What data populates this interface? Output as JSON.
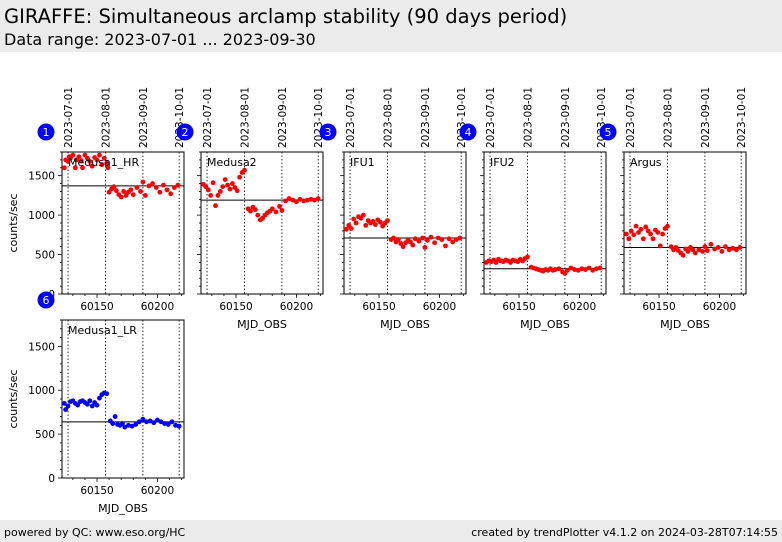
{
  "header": {
    "title": "GIRAFFE: Simultaneous arclamp stability (90 days period)",
    "subtitle": "Data range: 2023-07-01 ... 2023-09-30"
  },
  "footer": {
    "left": "powered by QC: www.eso.org/HC",
    "right": "created by trendPlotter v4.1.2 on 2024-03-28T07:14:55"
  },
  "colors": {
    "red": "#ff0000",
    "blue": "#0000ff",
    "badge": "#0000ff",
    "header_bg": "#ebebeb"
  },
  "chart_data": {
    "type": "scatter",
    "xlabel": "MJD_OBS",
    "ylabel": "counts/sec",
    "xlim": [
      60121,
      60222
    ],
    "ylim": [
      0,
      1800
    ],
    "xticks": [
      60150,
      60200
    ],
    "yticks": [
      0,
      500,
      1000,
      1500
    ],
    "date_markers": [
      {
        "label": "2023-07-01",
        "mjd": 60126
      },
      {
        "label": "2023-08-01",
        "mjd": 60157
      },
      {
        "label": "2023-09-01",
        "mjd": 60188
      },
      {
        "label": "2023-10-01",
        "mjd": 60218
      }
    ],
    "panels": [
      {
        "id": "1",
        "name": "Medusa1_HR",
        "color": "red",
        "reference": 1370,
        "series": [
          {
            "x": 60123,
            "y": 1600
          },
          {
            "x": 60124,
            "y": 1700
          },
          {
            "x": 60126,
            "y": 1680
          },
          {
            "x": 60127,
            "y": 1740
          },
          {
            "x": 60128,
            "y": 1720
          },
          {
            "x": 60130,
            "y": 1760
          },
          {
            "x": 60132,
            "y": 1600
          },
          {
            "x": 60133,
            "y": 1700
          },
          {
            "x": 60135,
            "y": 1740
          },
          {
            "x": 60137,
            "y": 1690
          },
          {
            "x": 60138,
            "y": 1600
          },
          {
            "x": 60140,
            "y": 1760
          },
          {
            "x": 60142,
            "y": 1720
          },
          {
            "x": 60144,
            "y": 1680
          },
          {
            "x": 60146,
            "y": 1620
          },
          {
            "x": 60148,
            "y": 1730
          },
          {
            "x": 60150,
            "y": 1700
          },
          {
            "x": 60152,
            "y": 1760
          },
          {
            "x": 60154,
            "y": 1640
          },
          {
            "x": 60156,
            "y": 1720
          },
          {
            "x": 60158,
            "y": 1660
          },
          {
            "x": 60159,
            "y": 1600
          },
          {
            "x": 60160,
            "y": 1290
          },
          {
            "x": 60162,
            "y": 1330
          },
          {
            "x": 60164,
            "y": 1360
          },
          {
            "x": 60166,
            "y": 1310
          },
          {
            "x": 60168,
            "y": 1260
          },
          {
            "x": 60170,
            "y": 1230
          },
          {
            "x": 60172,
            "y": 1300
          },
          {
            "x": 60174,
            "y": 1250
          },
          {
            "x": 60176,
            "y": 1290
          },
          {
            "x": 60178,
            "y": 1320
          },
          {
            "x": 60180,
            "y": 1260
          },
          {
            "x": 60183,
            "y": 1350
          },
          {
            "x": 60186,
            "y": 1300
          },
          {
            "x": 60188,
            "y": 1420
          },
          {
            "x": 60190,
            "y": 1250
          },
          {
            "x": 60193,
            "y": 1370
          },
          {
            "x": 60196,
            "y": 1400
          },
          {
            "x": 60199,
            "y": 1350
          },
          {
            "x": 60202,
            "y": 1290
          },
          {
            "x": 60205,
            "y": 1380
          },
          {
            "x": 60208,
            "y": 1320
          },
          {
            "x": 60211,
            "y": 1270
          },
          {
            "x": 60214,
            "y": 1350
          },
          {
            "x": 60217,
            "y": 1380
          }
        ]
      },
      {
        "id": "2",
        "name": "Medusa2",
        "color": "red",
        "reference": 1190,
        "series": [
          {
            "x": 60123,
            "y": 1390
          },
          {
            "x": 60125,
            "y": 1360
          },
          {
            "x": 60127,
            "y": 1320
          },
          {
            "x": 60129,
            "y": 1250
          },
          {
            "x": 60131,
            "y": 1410
          },
          {
            "x": 60133,
            "y": 1120
          },
          {
            "x": 60135,
            "y": 1250
          },
          {
            "x": 60137,
            "y": 1300
          },
          {
            "x": 60139,
            "y": 1360
          },
          {
            "x": 60141,
            "y": 1450
          },
          {
            "x": 60143,
            "y": 1380
          },
          {
            "x": 60145,
            "y": 1330
          },
          {
            "x": 60147,
            "y": 1400
          },
          {
            "x": 60149,
            "y": 1350
          },
          {
            "x": 60151,
            "y": 1310
          },
          {
            "x": 60153,
            "y": 1480
          },
          {
            "x": 60155,
            "y": 1540
          },
          {
            "x": 60157,
            "y": 1570
          },
          {
            "x": 60160,
            "y": 1080
          },
          {
            "x": 60162,
            "y": 1050
          },
          {
            "x": 60164,
            "y": 1100
          },
          {
            "x": 60166,
            "y": 1070
          },
          {
            "x": 60168,
            "y": 1000
          },
          {
            "x": 60170,
            "y": 940
          },
          {
            "x": 60172,
            "y": 960
          },
          {
            "x": 60174,
            "y": 1000
          },
          {
            "x": 60176,
            "y": 1030
          },
          {
            "x": 60178,
            "y": 1050
          },
          {
            "x": 60180,
            "y": 1080
          },
          {
            "x": 60183,
            "y": 1040
          },
          {
            "x": 60186,
            "y": 1110
          },
          {
            "x": 60188,
            "y": 1060
          },
          {
            "x": 60191,
            "y": 1180
          },
          {
            "x": 60194,
            "y": 1210
          },
          {
            "x": 60197,
            "y": 1190
          },
          {
            "x": 60200,
            "y": 1170
          },
          {
            "x": 60203,
            "y": 1200
          },
          {
            "x": 60206,
            "y": 1180
          },
          {
            "x": 60209,
            "y": 1190
          },
          {
            "x": 60212,
            "y": 1200
          },
          {
            "x": 60215,
            "y": 1190
          },
          {
            "x": 60218,
            "y": 1210
          }
        ]
      },
      {
        "id": "3",
        "name": "IFU1",
        "color": "red",
        "reference": 710,
        "series": [
          {
            "x": 60123,
            "y": 820
          },
          {
            "x": 60125,
            "y": 870
          },
          {
            "x": 60127,
            "y": 830
          },
          {
            "x": 60129,
            "y": 950
          },
          {
            "x": 60131,
            "y": 900
          },
          {
            "x": 60133,
            "y": 980
          },
          {
            "x": 60135,
            "y": 960
          },
          {
            "x": 60137,
            "y": 1000
          },
          {
            "x": 60139,
            "y": 870
          },
          {
            "x": 60141,
            "y": 930
          },
          {
            "x": 60143,
            "y": 900
          },
          {
            "x": 60145,
            "y": 920
          },
          {
            "x": 60147,
            "y": 880
          },
          {
            "x": 60149,
            "y": 940
          },
          {
            "x": 60151,
            "y": 910
          },
          {
            "x": 60153,
            "y": 860
          },
          {
            "x": 60155,
            "y": 900
          },
          {
            "x": 60157,
            "y": 930
          },
          {
            "x": 60160,
            "y": 690
          },
          {
            "x": 60162,
            "y": 710
          },
          {
            "x": 60164,
            "y": 660
          },
          {
            "x": 60166,
            "y": 690
          },
          {
            "x": 60168,
            "y": 640
          },
          {
            "x": 60170,
            "y": 600
          },
          {
            "x": 60172,
            "y": 650
          },
          {
            "x": 60174,
            "y": 680
          },
          {
            "x": 60176,
            "y": 660
          },
          {
            "x": 60178,
            "y": 620
          },
          {
            "x": 60180,
            "y": 700
          },
          {
            "x": 60183,
            "y": 670
          },
          {
            "x": 60186,
            "y": 710
          },
          {
            "x": 60188,
            "y": 590
          },
          {
            "x": 60190,
            "y": 680
          },
          {
            "x": 60193,
            "y": 720
          },
          {
            "x": 60196,
            "y": 650
          },
          {
            "x": 60199,
            "y": 710
          },
          {
            "x": 60202,
            "y": 690
          },
          {
            "x": 60205,
            "y": 610
          },
          {
            "x": 60208,
            "y": 700
          },
          {
            "x": 60211,
            "y": 660
          },
          {
            "x": 60214,
            "y": 690
          },
          {
            "x": 60217,
            "y": 710
          }
        ]
      },
      {
        "id": "4",
        "name": "IFU2",
        "color": "red",
        "reference": 320,
        "series": [
          {
            "x": 60123,
            "y": 400
          },
          {
            "x": 60125,
            "y": 420
          },
          {
            "x": 60127,
            "y": 410
          },
          {
            "x": 60129,
            "y": 430
          },
          {
            "x": 60131,
            "y": 400
          },
          {
            "x": 60133,
            "y": 440
          },
          {
            "x": 60135,
            "y": 420
          },
          {
            "x": 60137,
            "y": 410
          },
          {
            "x": 60139,
            "y": 430
          },
          {
            "x": 60141,
            "y": 420
          },
          {
            "x": 60143,
            "y": 400
          },
          {
            "x": 60145,
            "y": 430
          },
          {
            "x": 60147,
            "y": 420
          },
          {
            "x": 60149,
            "y": 410
          },
          {
            "x": 60151,
            "y": 440
          },
          {
            "x": 60153,
            "y": 420
          },
          {
            "x": 60155,
            "y": 450
          },
          {
            "x": 60157,
            "y": 470
          },
          {
            "x": 60160,
            "y": 340
          },
          {
            "x": 60162,
            "y": 330
          },
          {
            "x": 60164,
            "y": 320
          },
          {
            "x": 60166,
            "y": 310
          },
          {
            "x": 60168,
            "y": 300
          },
          {
            "x": 60170,
            "y": 290
          },
          {
            "x": 60172,
            "y": 310
          },
          {
            "x": 60174,
            "y": 300
          },
          {
            "x": 60176,
            "y": 320
          },
          {
            "x": 60178,
            "y": 300
          },
          {
            "x": 60180,
            "y": 310
          },
          {
            "x": 60183,
            "y": 320
          },
          {
            "x": 60186,
            "y": 280
          },
          {
            "x": 60188,
            "y": 260
          },
          {
            "x": 60190,
            "y": 300
          },
          {
            "x": 60193,
            "y": 330
          },
          {
            "x": 60196,
            "y": 310
          },
          {
            "x": 60199,
            "y": 300
          },
          {
            "x": 60202,
            "y": 320
          },
          {
            "x": 60205,
            "y": 310
          },
          {
            "x": 60208,
            "y": 330
          },
          {
            "x": 60211,
            "y": 300
          },
          {
            "x": 60214,
            "y": 320
          },
          {
            "x": 60217,
            "y": 330
          }
        ]
      },
      {
        "id": "5",
        "name": "Argus",
        "color": "red",
        "reference": 590,
        "series": [
          {
            "x": 60123,
            "y": 760
          },
          {
            "x": 60125,
            "y": 700
          },
          {
            "x": 60127,
            "y": 800
          },
          {
            "x": 60129,
            "y": 750
          },
          {
            "x": 60131,
            "y": 860
          },
          {
            "x": 60133,
            "y": 780
          },
          {
            "x": 60135,
            "y": 820
          },
          {
            "x": 60137,
            "y": 700
          },
          {
            "x": 60139,
            "y": 850
          },
          {
            "x": 60141,
            "y": 800
          },
          {
            "x": 60143,
            "y": 760
          },
          {
            "x": 60145,
            "y": 700
          },
          {
            "x": 60147,
            "y": 810
          },
          {
            "x": 60149,
            "y": 780
          },
          {
            "x": 60151,
            "y": 610
          },
          {
            "x": 60153,
            "y": 760
          },
          {
            "x": 60155,
            "y": 830
          },
          {
            "x": 60157,
            "y": 860
          },
          {
            "x": 60160,
            "y": 600
          },
          {
            "x": 60162,
            "y": 560
          },
          {
            "x": 60164,
            "y": 590
          },
          {
            "x": 60166,
            "y": 550
          },
          {
            "x": 60168,
            "y": 520
          },
          {
            "x": 60170,
            "y": 490
          },
          {
            "x": 60172,
            "y": 570
          },
          {
            "x": 60174,
            "y": 540
          },
          {
            "x": 60176,
            "y": 590
          },
          {
            "x": 60178,
            "y": 560
          },
          {
            "x": 60180,
            "y": 520
          },
          {
            "x": 60183,
            "y": 560
          },
          {
            "x": 60186,
            "y": 540
          },
          {
            "x": 60188,
            "y": 600
          },
          {
            "x": 60190,
            "y": 550
          },
          {
            "x": 60193,
            "y": 630
          },
          {
            "x": 60196,
            "y": 570
          },
          {
            "x": 60199,
            "y": 590
          },
          {
            "x": 60202,
            "y": 540
          },
          {
            "x": 60205,
            "y": 600
          },
          {
            "x": 60208,
            "y": 560
          },
          {
            "x": 60211,
            "y": 580
          },
          {
            "x": 60214,
            "y": 560
          },
          {
            "x": 60217,
            "y": 590
          }
        ]
      },
      {
        "id": "6",
        "name": "Medusa1_LR",
        "color": "blue",
        "reference": 640,
        "series": [
          {
            "x": 60123,
            "y": 850
          },
          {
            "x": 60124,
            "y": 780
          },
          {
            "x": 60126,
            "y": 820
          },
          {
            "x": 60128,
            "y": 870
          },
          {
            "x": 60130,
            "y": 880
          },
          {
            "x": 60132,
            "y": 850
          },
          {
            "x": 60134,
            "y": 830
          },
          {
            "x": 60136,
            "y": 870
          },
          {
            "x": 60138,
            "y": 880
          },
          {
            "x": 60140,
            "y": 860
          },
          {
            "x": 60142,
            "y": 840
          },
          {
            "x": 60144,
            "y": 880
          },
          {
            "x": 60146,
            "y": 820
          },
          {
            "x": 60148,
            "y": 860
          },
          {
            "x": 60150,
            "y": 830
          },
          {
            "x": 60152,
            "y": 910
          },
          {
            "x": 60154,
            "y": 950
          },
          {
            "x": 60156,
            "y": 970
          },
          {
            "x": 60158,
            "y": 960
          },
          {
            "x": 60161,
            "y": 650
          },
          {
            "x": 60163,
            "y": 620
          },
          {
            "x": 60165,
            "y": 700
          },
          {
            "x": 60167,
            "y": 610
          },
          {
            "x": 60169,
            "y": 600
          },
          {
            "x": 60171,
            "y": 620
          },
          {
            "x": 60173,
            "y": 580
          },
          {
            "x": 60176,
            "y": 600
          },
          {
            "x": 60179,
            "y": 590
          },
          {
            "x": 60182,
            "y": 610
          },
          {
            "x": 60185,
            "y": 640
          },
          {
            "x": 60188,
            "y": 670
          },
          {
            "x": 60191,
            "y": 640
          },
          {
            "x": 60194,
            "y": 650
          },
          {
            "x": 60197,
            "y": 630
          },
          {
            "x": 60200,
            "y": 660
          },
          {
            "x": 60203,
            "y": 640
          },
          {
            "x": 60206,
            "y": 620
          },
          {
            "x": 60209,
            "y": 610
          },
          {
            "x": 60212,
            "y": 640
          },
          {
            "x": 60215,
            "y": 600
          },
          {
            "x": 60218,
            "y": 590
          }
        ]
      }
    ]
  }
}
